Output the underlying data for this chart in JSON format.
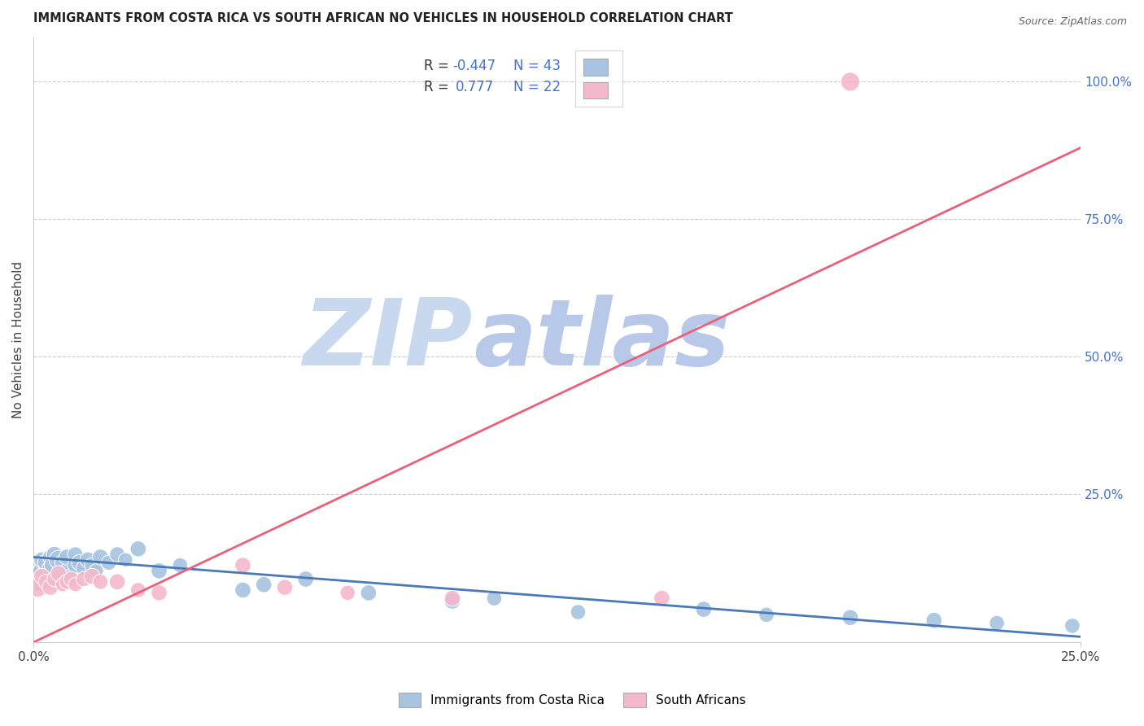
{
  "title": "IMMIGRANTS FROM COSTA RICA VS SOUTH AFRICAN NO VEHICLES IN HOUSEHOLD CORRELATION CHART",
  "source": "Source: ZipAtlas.com",
  "ylabel_label": "No Vehicles in Household",
  "right_ytick_vals": [
    0.25,
    0.5,
    0.75,
    1.0
  ],
  "right_ytick_labels": [
    "25.0%",
    "50.0%",
    "75.0%",
    "100.0%"
  ],
  "xlim": [
    0.0,
    0.25
  ],
  "ylim": [
    -0.02,
    1.08
  ],
  "color_blue": "#a8c4e0",
  "color_pink": "#f4b8cc",
  "line_color_blue": "#4a7ab5",
  "line_color_pink": "#e8607a",
  "watermark_zip": "ZIP",
  "watermark_atlas": "atlas",
  "watermark_color_zip": "#c8d8ee",
  "watermark_color_atlas": "#b8c8e8",
  "blue_scatter_x": [
    0.001,
    0.002,
    0.002,
    0.003,
    0.003,
    0.004,
    0.004,
    0.005,
    0.005,
    0.006,
    0.006,
    0.007,
    0.007,
    0.008,
    0.008,
    0.009,
    0.01,
    0.01,
    0.011,
    0.012,
    0.013,
    0.014,
    0.015,
    0.016,
    0.018,
    0.02,
    0.022,
    0.025,
    0.03,
    0.035,
    0.05,
    0.055,
    0.065,
    0.08,
    0.1,
    0.11,
    0.13,
    0.16,
    0.175,
    0.195,
    0.215,
    0.23,
    0.248
  ],
  "blue_scatter_y": [
    0.095,
    0.11,
    0.13,
    0.105,
    0.125,
    0.115,
    0.135,
    0.12,
    0.14,
    0.13,
    0.1,
    0.115,
    0.125,
    0.11,
    0.135,
    0.095,
    0.12,
    0.14,
    0.125,
    0.115,
    0.13,
    0.12,
    0.11,
    0.135,
    0.125,
    0.14,
    0.13,
    0.15,
    0.11,
    0.12,
    0.075,
    0.085,
    0.095,
    0.07,
    0.055,
    0.06,
    0.035,
    0.04,
    0.03,
    0.025,
    0.02,
    0.015,
    0.01
  ],
  "blue_scatter_size": [
    500,
    250,
    200,
    280,
    220,
    200,
    180,
    320,
    200,
    280,
    200,
    180,
    200,
    180,
    200,
    300,
    200,
    180,
    200,
    180,
    200,
    180,
    160,
    200,
    180,
    180,
    160,
    200,
    200,
    180,
    200,
    200,
    200,
    200,
    200,
    180,
    180,
    200,
    180,
    200,
    200,
    180,
    180
  ],
  "pink_scatter_x": [
    0.001,
    0.002,
    0.003,
    0.004,
    0.005,
    0.006,
    0.007,
    0.008,
    0.009,
    0.01,
    0.012,
    0.014,
    0.016,
    0.02,
    0.025,
    0.03,
    0.05,
    0.06,
    0.075,
    0.1,
    0.15,
    0.195
  ],
  "pink_scatter_y": [
    0.08,
    0.1,
    0.09,
    0.08,
    0.095,
    0.105,
    0.085,
    0.09,
    0.095,
    0.085,
    0.095,
    0.1,
    0.09,
    0.09,
    0.075,
    0.07,
    0.12,
    0.08,
    0.07,
    0.06,
    0.06,
    1.0
  ],
  "pink_scatter_size": [
    300,
    200,
    180,
    200,
    180,
    200,
    160,
    180,
    180,
    160,
    180,
    200,
    180,
    200,
    180,
    200,
    200,
    200,
    180,
    200,
    200,
    280
  ],
  "blue_line_x0": 0.0,
  "blue_line_y0": 0.135,
  "blue_line_x1": 0.25,
  "blue_line_y1": -0.01,
  "pink_line_x0": 0.0,
  "pink_line_y0": -0.02,
  "pink_line_x1": 0.25,
  "pink_line_y1": 0.88
}
